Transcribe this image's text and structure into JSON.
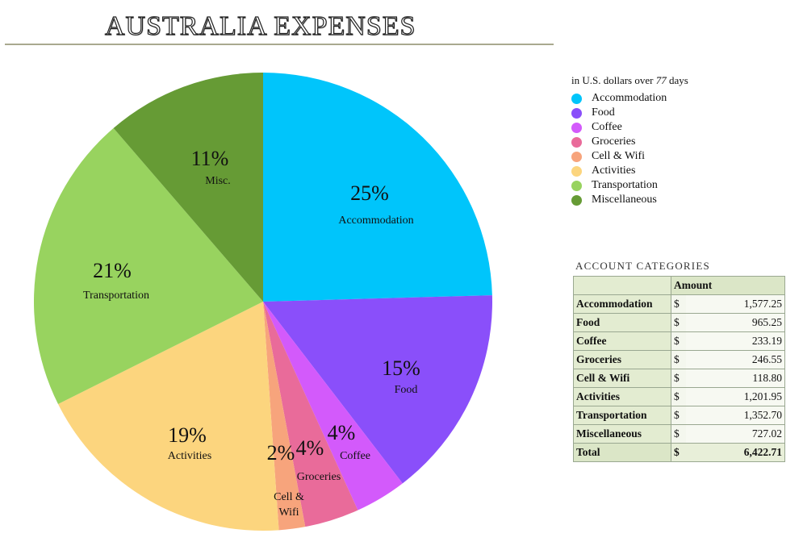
{
  "title": "AUSTRALIA EXPENSES",
  "chart_data": {
    "type": "pie",
    "title": "AUSTRALIA EXPENSES",
    "slices": [
      {
        "label": "Accommodation",
        "legend": "Accommodation",
        "pct_label": "25%",
        "value": 1577.25,
        "color": "#00c5fb"
      },
      {
        "label": "Food",
        "legend": "Food",
        "pct_label": "15%",
        "value": 965.25,
        "color": "#8a4ffa"
      },
      {
        "label": "Coffee",
        "legend": "Coffee",
        "pct_label": "4%",
        "value": 233.19,
        "color": "#d35afb"
      },
      {
        "label": "Groceries",
        "legend": "Groceries",
        "pct_label": "4%",
        "value": 246.55,
        "color": "#e96b9a"
      },
      {
        "label": "Cell & Wifi",
        "legend": "Cell & Wifi",
        "pct_label": "2%",
        "value": 118.8,
        "color": "#f7a47c"
      },
      {
        "label": "Activities",
        "legend": "Activities",
        "pct_label": "19%",
        "value": 1201.95,
        "color": "#fcd57e"
      },
      {
        "label": "Transportation",
        "legend": "Transportation",
        "pct_label": "21%",
        "value": 1352.7,
        "color": "#98d35f"
      },
      {
        "label": "Misc.",
        "legend": "Miscellaneous",
        "pct_label": "11%",
        "value": 727.02,
        "color": "#669b35"
      }
    ],
    "legend_caption_prefix": "in U.S. dollars over ",
    "legend_caption_italic": "77",
    "legend_caption_suffix": " days",
    "legend_position": "right"
  },
  "table": {
    "caption": "ACCOUNT CATEGORIES",
    "header": "Amount",
    "currency": "$",
    "rows": [
      {
        "category": "Accommodation",
        "amount": "1,577.25"
      },
      {
        "category": "Food",
        "amount": "965.25"
      },
      {
        "category": "Coffee",
        "amount": "233.19"
      },
      {
        "category": "Groceries",
        "amount": "246.55"
      },
      {
        "category": "Cell & Wifi",
        "amount": "118.80"
      },
      {
        "category": "Activities",
        "amount": "1,201.95"
      },
      {
        "category": "Transportation",
        "amount": "1,352.70"
      },
      {
        "category": "Miscellaneous",
        "amount": "727.02"
      }
    ],
    "total_label": "Total",
    "total_amount": "6,422.71"
  }
}
